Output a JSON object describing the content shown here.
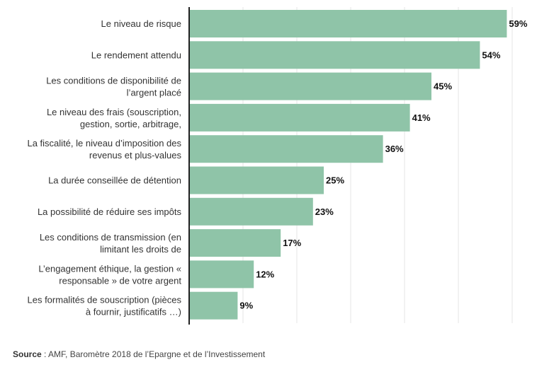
{
  "chart_data": {
    "type": "bar",
    "orientation": "horizontal",
    "categories": [
      [
        "Le niveau de risque"
      ],
      [
        "Le rendement attendu"
      ],
      [
        "Les conditions de disponibilité de",
        "l’argent placé"
      ],
      [
        "Le niveau des frais (souscription,",
        "gestion, sortie, arbitrage,"
      ],
      [
        "La fiscalité, le niveau d’imposition des",
        "revenus et plus-values"
      ],
      [
        "La durée conseillée de détention"
      ],
      [
        "La possibilité de réduire ses impôts"
      ],
      [
        "Les conditions de transmission (en",
        "limitant les droits de"
      ],
      [
        "L’engagement éthique, la gestion «",
        "responsable » de votre argent"
      ],
      [
        "Les formalités de souscription (pièces",
        "à fournir, justificatifs …)"
      ]
    ],
    "values": [
      59,
      54,
      45,
      41,
      36,
      25,
      23,
      17,
      12,
      9
    ],
    "value_suffix": "%",
    "xlim": [
      0,
      60
    ],
    "grid": "vertical",
    "bar_color": "#8fc4a8",
    "gridline_color": "#e6e6e6",
    "axis_color": "#222222"
  },
  "source": {
    "label": "Source",
    "text": " : AMF, Baromètre 2018 de l’Epargne et de l’Investissement"
  }
}
